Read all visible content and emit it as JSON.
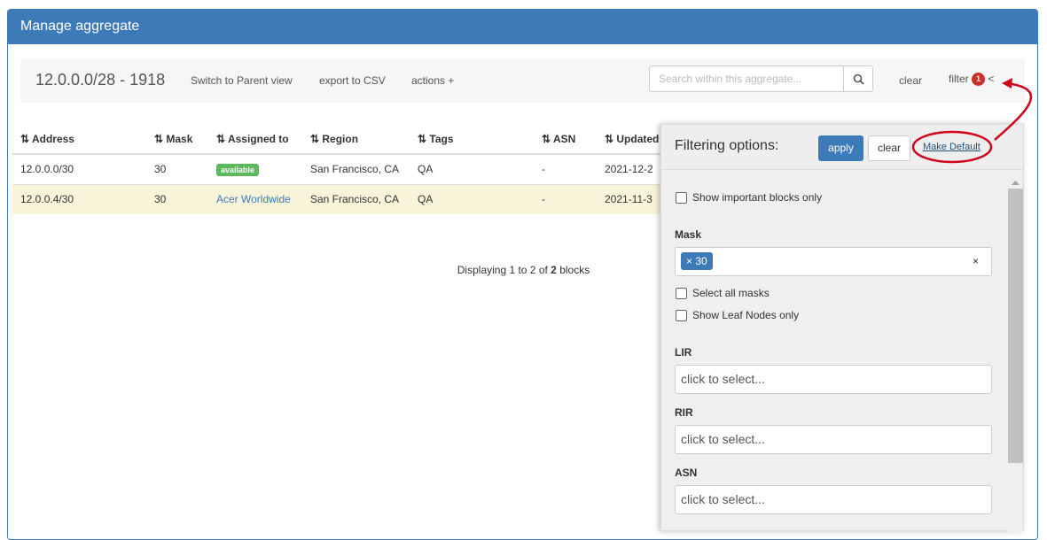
{
  "header": {
    "title": "Manage aggregate"
  },
  "toolbar": {
    "aggregate": "12.0.0.0/28 - 1918",
    "switch_parent": "Switch to Parent view",
    "export": "export to CSV",
    "actions": "actions +",
    "search_placeholder": "Search within this aggregate...",
    "clear": "clear",
    "filter": "filter",
    "filter_count": "1",
    "collapse": "<"
  },
  "table": {
    "columns": [
      "Address",
      "Mask",
      "Assigned to",
      "Region",
      "Tags",
      "ASN",
      "Updated"
    ],
    "rows": [
      {
        "address": "12.0.0.0/30",
        "mask": "30",
        "assigned": "available",
        "region": "San Francisco, CA",
        "tags": "QA",
        "asn": "-",
        "updated": "2021-12-2"
      },
      {
        "address": "12.0.0.4/30",
        "mask": "30",
        "assigned": "Acer Worldwide",
        "region": "San Francisco, CA",
        "tags": "QA",
        "asn": "-",
        "updated": "2021-11-3"
      }
    ]
  },
  "footer": {
    "prefix": "Displaying 1 to 2 of ",
    "total": "2",
    "suffix": " blocks"
  },
  "filter_panel": {
    "title": "Filtering options:",
    "apply": "apply",
    "clear": "clear",
    "make_default": "Make Default",
    "important_only": "Show important blocks only",
    "mask_label": "Mask",
    "mask_tag": "× 30",
    "mask_clear": "×",
    "select_all_masks": "Select all masks",
    "leaf_only": "Show Leaf Nodes only",
    "lir_label": "LIR",
    "rir_label": "RIR",
    "asn_label": "ASN",
    "select_placeholder": "click to select..."
  },
  "colors": {
    "primary": "#3d7ab8",
    "available": "#5cb85c",
    "highlight_row": "#f8f4d9",
    "badge": "#c9302c",
    "annotation": "#d0021b"
  }
}
